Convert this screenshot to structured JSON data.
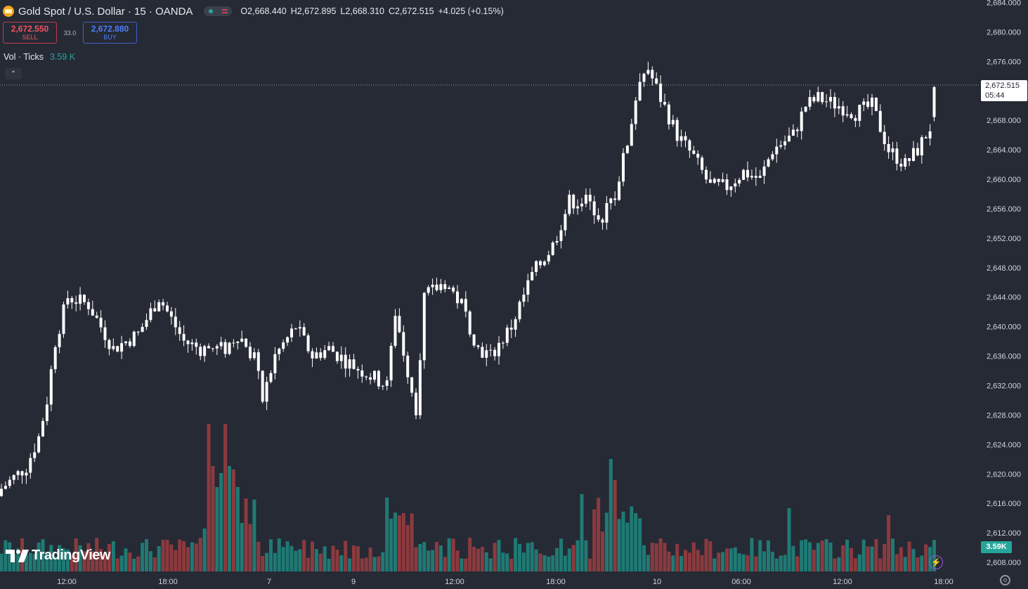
{
  "header": {
    "symbol_title": "Gold Spot / U.S. Dollar · 15 · OANDA",
    "ohlc": {
      "open": "O2,668.440",
      "high": "H2,672.895",
      "low": "L2,668.310",
      "close": "C2,672.515",
      "change": "+4.025 (+0.15%)"
    }
  },
  "trade": {
    "sell_price": "2,672.550",
    "sell_label": "SELL",
    "spread": "33.0",
    "buy_price": "2,672.880",
    "buy_label": "BUY"
  },
  "volume_indicator": {
    "title": "Vol · Ticks",
    "value": "3.59 K"
  },
  "collapse_glyph": "⌃",
  "price_axis": {
    "ticks": [
      "2,684.000",
      "2,680.000",
      "2,676.000",
      "2,672.000",
      "2,668.000",
      "2,664.000",
      "2,660.000",
      "2,656.000",
      "2,652.000",
      "2,648.000",
      "2,644.000",
      "2,640.000",
      "2,636.000",
      "2,632.000",
      "2,628.000",
      "2,624.000",
      "2,620.000",
      "2,616.000",
      "2,612.000",
      "2,608.000"
    ]
  },
  "time_axis": {
    "ticks": [
      "12:00",
      "18:00",
      "7",
      "9",
      "12:00",
      "18:00",
      "10",
      "06:00",
      "12:00",
      "18:00"
    ]
  },
  "current_price_tag": {
    "price": "2,672.515",
    "countdown": "05:44"
  },
  "volume_tag": "3.59K",
  "brand": "TradingView",
  "colors": {
    "background": "#262a35",
    "candle": "#ffffff",
    "volume_up": "#1f7a74",
    "volume_down": "#8c3a3e",
    "volume_tag": "#26a69a"
  },
  "chart_data": {
    "type": "candlestick",
    "title": "Gold Spot / U.S. Dollar · 15 · OANDA",
    "ylim": [
      2606,
      2685
    ],
    "x_tick_labels": [
      "12:00",
      "18:00",
      "7",
      "9",
      "12:00",
      "18:00",
      "10",
      "06:00",
      "12:00",
      "18:00"
    ],
    "close_path_anchors": [
      [
        0,
        2618
      ],
      [
        6,
        2621
      ],
      [
        9,
        2625
      ],
      [
        11,
        2630
      ],
      [
        13,
        2638
      ],
      [
        16,
        2644
      ],
      [
        21,
        2643
      ],
      [
        27,
        2637
      ],
      [
        33,
        2639
      ],
      [
        38,
        2644
      ],
      [
        44,
        2638
      ],
      [
        48,
        2637
      ],
      [
        54,
        2637
      ],
      [
        57,
        2639
      ],
      [
        61,
        2636
      ],
      [
        63,
        2630
      ],
      [
        66,
        2636
      ],
      [
        71,
        2640
      ],
      [
        75,
        2636
      ],
      [
        79,
        2637
      ],
      [
        84,
        2635
      ],
      [
        90,
        2633
      ],
      [
        93,
        2632
      ],
      [
        95,
        2642
      ],
      [
        98,
        2634
      ],
      [
        100,
        2629
      ],
      [
        102,
        2644
      ],
      [
        107,
        2646
      ],
      [
        111,
        2643
      ],
      [
        115,
        2637
      ],
      [
        118,
        2636
      ],
      [
        123,
        2640
      ],
      [
        128,
        2647
      ],
      [
        133,
        2651
      ],
      [
        137,
        2657
      ],
      [
        141,
        2657
      ],
      [
        145,
        2655
      ],
      [
        148,
        2658
      ],
      [
        151,
        2665
      ],
      [
        154,
        2674
      ],
      [
        156,
        2675
      ],
      [
        159,
        2671
      ],
      [
        163,
        2666
      ],
      [
        167,
        2663
      ],
      [
        171,
        2659
      ],
      [
        175,
        2659
      ],
      [
        179,
        2661
      ],
      [
        183,
        2660
      ],
      [
        186,
        2664
      ],
      [
        191,
        2666
      ],
      [
        194,
        2670
      ],
      [
        197,
        2671
      ],
      [
        202,
        2670
      ],
      [
        206,
        2669
      ],
      [
        210,
        2670
      ],
      [
        214,
        2664
      ],
      [
        218,
        2662
      ],
      [
        221,
        2664
      ],
      [
        224,
        2667
      ],
      [
        225,
        2672.515
      ]
    ],
    "volume_max_ticks": 3590
  }
}
